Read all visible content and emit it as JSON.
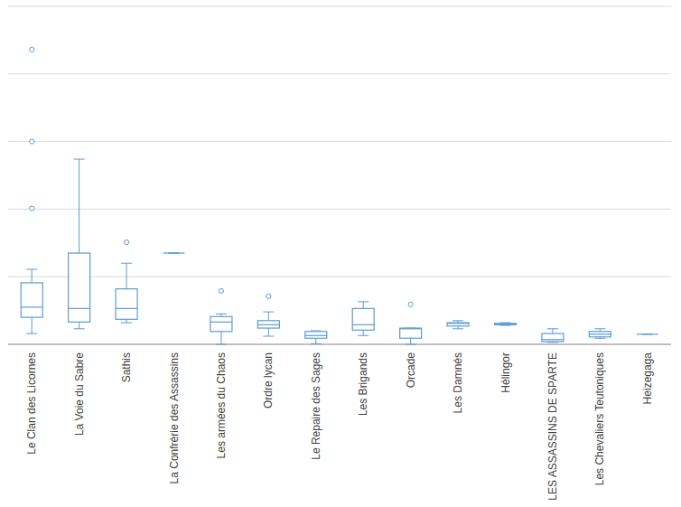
{
  "chart_data": {
    "type": "box",
    "categories": [
      "Le Clan des Licornes",
      "La Voie du Sabre",
      "Sathis",
      "La Confrérie des Assassins",
      "Les armées du Chaos",
      "Ordre lycan",
      "Le Repaire des Sages",
      "Les Brigands",
      "Orcade",
      "Les Damnés",
      "Hélingor",
      "LES ASSASSINS DE SPARTE",
      "Les Chevaliers Teutoniques",
      "Heizegaga"
    ],
    "min": [
      1.6,
      2.3,
      3.2,
      13.5,
      0,
      1.2,
      0.1,
      1.3,
      0,
      2.3,
      2.8,
      0.3,
      0.9,
      1.5
    ],
    "q1": [
      4.0,
      3.3,
      3.7,
      13.5,
      1.9,
      2.4,
      0.9,
      2.1,
      0.9,
      2.7,
      2.9,
      0.4,
      1.1,
      1.5
    ],
    "median": [
      5.5,
      5.3,
      5.3,
      13.5,
      3.3,
      2.9,
      1.3,
      2.9,
      2.3,
      3.1,
      3.0,
      0.7,
      1.5,
      1.5
    ],
    "q3": [
      9.1,
      13.5,
      8.2,
      13.5,
      4.1,
      3.5,
      1.9,
      5.3,
      2.4,
      3.2,
      3.1,
      1.6,
      1.9,
      1.5
    ],
    "max": [
      11.1,
      27.4,
      12.0,
      13.5,
      4.5,
      4.8,
      2.0,
      6.3,
      2.4,
      3.5,
      3.2,
      2.3,
      2.3,
      1.5
    ],
    "outliers": [
      [
        20.1,
        30,
        43.6
      ],
      [],
      [
        15.1
      ],
      [],
      [
        7.9
      ],
      [
        7.1
      ],
      [],
      [],
      [
        5.9
      ],
      [],
      [],
      [],
      [],
      []
    ],
    "color": "#5b9bd5",
    "ylim": [
      0,
      50
    ],
    "yticks": [
      0,
      10,
      20,
      30,
      40,
      50
    ],
    "grid": true,
    "tick_labels": "x"
  }
}
